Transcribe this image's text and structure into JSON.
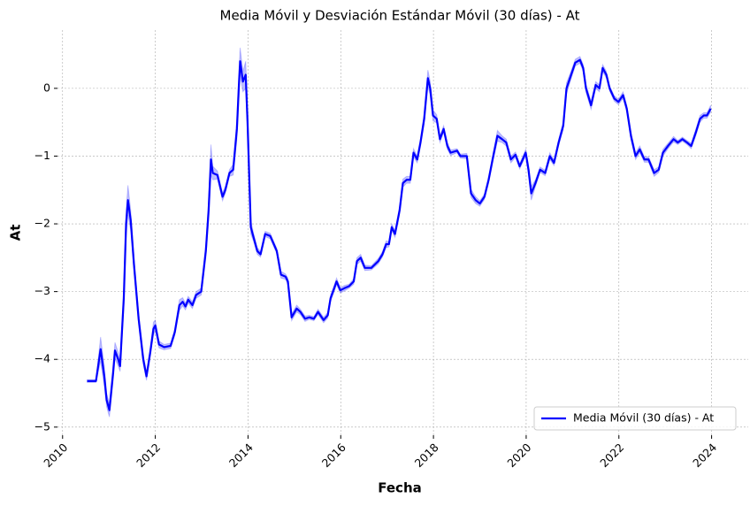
{
  "chart_data": {
    "type": "line",
    "title": "Media Móvil y Desviación Estándar Móvil (30 días) - At",
    "xlabel": "Fecha",
    "ylabel": "At",
    "x": [
      2010.53,
      2010.72,
      2010.82,
      2010.9,
      2010.95,
      2011.01,
      2011.09,
      2011.13,
      2011.2,
      2011.24,
      2011.32,
      2011.37,
      2011.41,
      2011.47,
      2011.54,
      2011.64,
      2011.74,
      2011.81,
      2011.89,
      2011.96,
      2012.0,
      2012.08,
      2012.19,
      2012.33,
      2012.42,
      2012.52,
      2012.59,
      2012.65,
      2012.71,
      2012.8,
      2012.88,
      2012.99,
      2013.09,
      2013.15,
      2013.2,
      2013.24,
      2013.34,
      2013.45,
      2013.51,
      2013.6,
      2013.68,
      2013.76,
      2013.8,
      2013.83,
      2013.89,
      2013.95,
      2013.99,
      2014.06,
      2014.12,
      2014.2,
      2014.27,
      2014.37,
      2014.48,
      2014.62,
      2014.71,
      2014.81,
      2014.86,
      2014.94,
      2015.05,
      2015.13,
      2015.23,
      2015.32,
      2015.42,
      2015.51,
      2015.63,
      2015.72,
      2015.78,
      2015.86,
      2015.91,
      2015.99,
      2016.08,
      2016.18,
      2016.28,
      2016.35,
      2016.43,
      2016.52,
      2016.66,
      2016.81,
      2016.9,
      2016.98,
      2017.04,
      2017.1,
      2017.17,
      2017.27,
      2017.34,
      2017.42,
      2017.5,
      2017.57,
      2017.65,
      2017.72,
      2017.8,
      2017.88,
      2017.93,
      2017.99,
      2018.07,
      2018.14,
      2018.22,
      2018.3,
      2018.37,
      2018.51,
      2018.58,
      2018.72,
      2018.81,
      2018.91,
      2019.0,
      2019.1,
      2019.19,
      2019.29,
      2019.38,
      2019.48,
      2019.57,
      2019.67,
      2019.77,
      2019.86,
      2019.99,
      2020.05,
      2020.11,
      2020.2,
      2020.3,
      2020.41,
      2020.51,
      2020.6,
      2020.7,
      2020.8,
      2020.87,
      2020.97,
      2021.06,
      2021.16,
      2021.23,
      2021.29,
      2021.4,
      2021.5,
      2021.58,
      2021.65,
      2021.73,
      2021.8,
      2021.9,
      2021.99,
      2022.09,
      2022.17,
      2022.26,
      2022.36,
      2022.45,
      2022.55,
      2022.64,
      2022.76,
      2022.86,
      2022.95,
      2023.06,
      2023.18,
      2023.27,
      2023.37,
      2023.47,
      2023.56,
      2023.66,
      2023.75,
      2023.83,
      2023.9,
      2023.98
    ],
    "series": [
      {
        "name": "Media Móvil (30 días) - At",
        "color": "#0000ff",
        "band_color": "#0000ff",
        "values": [
          -4.32,
          -4.32,
          -3.85,
          -4.25,
          -4.6,
          -4.75,
          -4.2,
          -3.87,
          -4.0,
          -4.1,
          -3.1,
          -2.0,
          -1.65,
          -1.95,
          -2.6,
          -3.4,
          -4.0,
          -4.25,
          -3.9,
          -3.55,
          -3.5,
          -3.78,
          -3.82,
          -3.8,
          -3.6,
          -3.2,
          -3.15,
          -3.22,
          -3.12,
          -3.2,
          -3.05,
          -3.0,
          -2.4,
          -1.8,
          -1.05,
          -1.25,
          -1.28,
          -1.6,
          -1.5,
          -1.25,
          -1.2,
          -0.6,
          0.0,
          0.4,
          0.1,
          0.2,
          -0.5,
          -2.05,
          -2.2,
          -2.4,
          -2.45,
          -2.15,
          -2.18,
          -2.4,
          -2.75,
          -2.78,
          -2.85,
          -3.38,
          -3.25,
          -3.3,
          -3.4,
          -3.38,
          -3.4,
          -3.3,
          -3.42,
          -3.35,
          -3.1,
          -2.95,
          -2.85,
          -2.98,
          -2.95,
          -2.92,
          -2.85,
          -2.55,
          -2.5,
          -2.65,
          -2.65,
          -2.55,
          -2.45,
          -2.3,
          -2.3,
          -2.05,
          -2.15,
          -1.8,
          -1.4,
          -1.35,
          -1.35,
          -0.95,
          -1.05,
          -0.8,
          -0.45,
          0.15,
          0.0,
          -0.4,
          -0.45,
          -0.75,
          -0.6,
          -0.85,
          -0.95,
          -0.92,
          -1.0,
          -1.0,
          -1.55,
          -1.65,
          -1.7,
          -1.6,
          -1.35,
          -1.0,
          -0.7,
          -0.75,
          -0.8,
          -1.05,
          -0.98,
          -1.15,
          -0.95,
          -1.2,
          -1.55,
          -1.4,
          -1.2,
          -1.25,
          -1.0,
          -1.1,
          -0.8,
          -0.55,
          0.0,
          0.2,
          0.38,
          0.42,
          0.3,
          0.0,
          -0.25,
          0.05,
          0.0,
          0.3,
          0.2,
          0.0,
          -0.15,
          -0.2,
          -0.1,
          -0.3,
          -0.7,
          -1.0,
          -0.9,
          -1.05,
          -1.05,
          -1.25,
          -1.2,
          -0.95,
          -0.85,
          -0.75,
          -0.8,
          -0.75,
          -0.8,
          -0.85,
          -0.65,
          -0.45,
          -0.4,
          -0.4,
          -0.3
        ],
        "std": [
          0.02,
          0.02,
          0.18,
          0.15,
          0.1,
          0.1,
          0.12,
          0.12,
          0.1,
          0.08,
          0.15,
          0.2,
          0.22,
          0.15,
          0.1,
          0.08,
          0.08,
          0.06,
          0.06,
          0.1,
          0.08,
          0.05,
          0.04,
          0.04,
          0.05,
          0.08,
          0.06,
          0.05,
          0.05,
          0.05,
          0.05,
          0.05,
          0.1,
          0.15,
          0.22,
          0.1,
          0.06,
          0.06,
          0.05,
          0.05,
          0.08,
          0.15,
          0.2,
          0.2,
          0.15,
          0.2,
          0.2,
          0.1,
          0.06,
          0.05,
          0.04,
          0.04,
          0.04,
          0.04,
          0.05,
          0.04,
          0.05,
          0.05,
          0.05,
          0.04,
          0.04,
          0.03,
          0.03,
          0.04,
          0.04,
          0.04,
          0.05,
          0.05,
          0.05,
          0.04,
          0.04,
          0.03,
          0.04,
          0.05,
          0.05,
          0.04,
          0.03,
          0.04,
          0.04,
          0.05,
          0.04,
          0.05,
          0.05,
          0.06,
          0.06,
          0.05,
          0.05,
          0.06,
          0.05,
          0.06,
          0.08,
          0.12,
          0.1,
          0.08,
          0.06,
          0.05,
          0.05,
          0.05,
          0.04,
          0.03,
          0.03,
          0.04,
          0.06,
          0.05,
          0.04,
          0.04,
          0.05,
          0.06,
          0.08,
          0.05,
          0.05,
          0.05,
          0.04,
          0.04,
          0.05,
          0.08,
          0.1,
          0.05,
          0.04,
          0.04,
          0.05,
          0.04,
          0.05,
          0.06,
          0.08,
          0.06,
          0.05,
          0.05,
          0.05,
          0.06,
          0.06,
          0.05,
          0.05,
          0.05,
          0.05,
          0.04,
          0.04,
          0.04,
          0.05,
          0.05,
          0.06,
          0.05,
          0.05,
          0.04,
          0.04,
          0.05,
          0.04,
          0.05,
          0.04,
          0.04,
          0.03,
          0.03,
          0.03,
          0.04,
          0.05,
          0.05,
          0.04,
          0.04,
          0.05
        ]
      }
    ],
    "xlim": [
      2009.89,
      2024.79
    ],
    "xticks": [
      2010,
      2012,
      2014,
      2016,
      2018,
      2020,
      2022,
      2024
    ],
    "ylim": [
      -5.12,
      0.86
    ],
    "yticks": [
      {
        "value": -5,
        "label": "−5"
      },
      {
        "value": -4,
        "label": "−4"
      },
      {
        "value": -3,
        "label": "−3"
      },
      {
        "value": -2,
        "label": "−2"
      },
      {
        "value": -1,
        "label": "−1"
      },
      0
    ],
    "grid": true,
    "legend": "lower right"
  }
}
